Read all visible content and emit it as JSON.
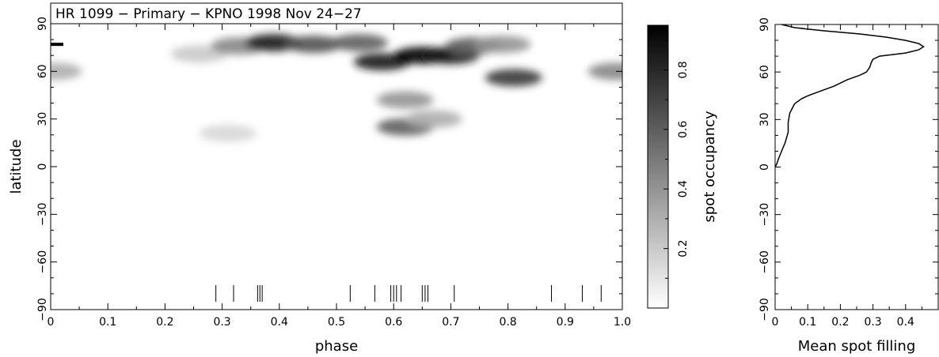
{
  "chart_data": [
    {
      "type": "heatmap",
      "title": "HR 1099 − Primary − KPNO 1998 Nov 24−27",
      "xlabel": "phase",
      "ylabel": "latitude",
      "xlim": [
        0,
        1.0
      ],
      "ylim": [
        -90,
        90
      ],
      "xticks": [
        "0",
        "0.1",
        "0.2",
        "0.3",
        "0.4",
        "0.5",
        "0.6",
        "0.7",
        "0.8",
        "0.9",
        "1.0"
      ],
      "yticks": [
        "−90",
        "−60",
        "−30",
        "0",
        "30",
        "60",
        "90"
      ],
      "observed_phases": [
        0.289,
        0.32,
        0.362,
        0.366,
        0.37,
        0.524,
        0.567,
        0.595,
        0.6,
        0.605,
        0.613,
        0.65,
        0.655,
        0.66,
        0.706,
        0.876,
        0.93,
        0.963
      ],
      "pole_marker_latitude": 77,
      "colorbar": {
        "label": "spot occupancy",
        "range": [
          0,
          0.95
        ],
        "ticks": [
          "0.2",
          "0.4",
          "0.6",
          "0.8"
        ]
      },
      "features": [
        {
          "phase": 0.26,
          "latitude": 71,
          "occupancy": 0.2
        },
        {
          "phase": 0.33,
          "latitude": 76,
          "occupancy": 0.45
        },
        {
          "phase": 0.39,
          "latitude": 78,
          "occupancy": 0.85
        },
        {
          "phase": 0.46,
          "latitude": 77,
          "occupancy": 0.65
        },
        {
          "phase": 0.54,
          "latitude": 78,
          "occupancy": 0.6
        },
        {
          "phase": 0.58,
          "latitude": 66,
          "occupancy": 0.85
        },
        {
          "phase": 0.65,
          "latitude": 70,
          "occupancy": 0.95
        },
        {
          "phase": 0.7,
          "latitude": 70,
          "occupancy": 0.85
        },
        {
          "phase": 0.74,
          "latitude": 76,
          "occupancy": 0.6
        },
        {
          "phase": 0.81,
          "latitude": 56,
          "occupancy": 0.75
        },
        {
          "phase": 0.79,
          "latitude": 77,
          "occupancy": 0.4
        },
        {
          "phase": 0.62,
          "latitude": 25,
          "occupancy": 0.6
        },
        {
          "phase": 0.62,
          "latitude": 42,
          "occupancy": 0.4
        },
        {
          "phase": 0.67,
          "latitude": 30,
          "occupancy": 0.3
        },
        {
          "phase": 0.99,
          "latitude": 60,
          "occupancy": 0.45
        },
        {
          "phase": 0.005,
          "latitude": 60,
          "occupancy": 0.3
        },
        {
          "phase": 0.31,
          "latitude": 21,
          "occupancy": 0.15
        }
      ]
    },
    {
      "type": "line",
      "xlabel": "Mean spot filling",
      "ylabel": "",
      "xlim": [
        0,
        0.5
      ],
      "ylim": [
        -90,
        90
      ],
      "xticks": [
        "0",
        "0.1",
        "0.2",
        "0.3",
        "0.4"
      ],
      "yticks": [
        "−90",
        "−60",
        "−30",
        "0",
        "30",
        "60",
        "90"
      ],
      "x": [
        0.0,
        0.005,
        0.01,
        0.02,
        0.03,
        0.04,
        0.04,
        0.045,
        0.06,
        0.08,
        0.1,
        0.14,
        0.18,
        0.22,
        0.26,
        0.28,
        0.29,
        0.295,
        0.3,
        0.32,
        0.36,
        0.4,
        0.44,
        0.455,
        0.44,
        0.4,
        0.34,
        0.26,
        0.15,
        0.06,
        0.02
      ],
      "y": [
        0,
        2,
        5,
        10,
        15,
        22,
        28,
        34,
        40,
        43,
        45,
        48,
        51,
        55,
        58,
        60,
        63,
        66,
        68,
        70,
        71,
        72,
        74,
        76,
        78,
        80,
        82,
        84,
        86,
        88,
        90
      ]
    }
  ]
}
